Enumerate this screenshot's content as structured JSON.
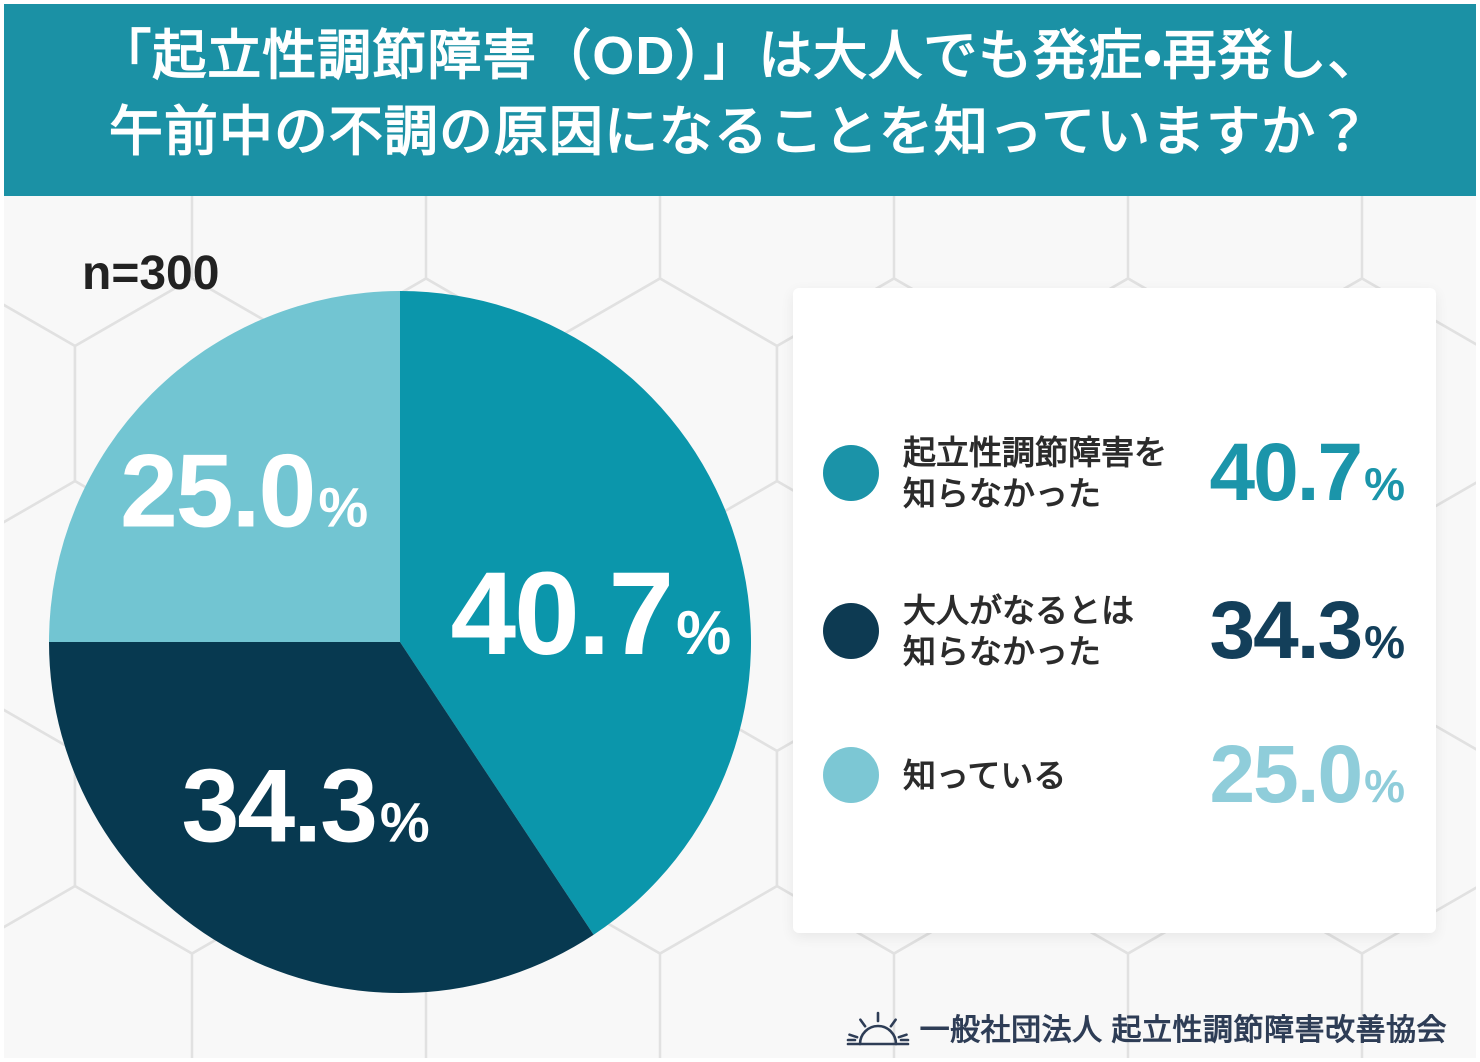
{
  "theme": {
    "header_bg": "#1b91a5",
    "footer_color": "#2e3d56",
    "background": "#ededed"
  },
  "header": {
    "title_line1": "「起立性調節障害（OD）」は大人でも発症・再発し、",
    "title_line2": "午前中の不調の原因になることを知っていますか？"
  },
  "sample_label": "n=300",
  "chart_data": {
    "type": "pie",
    "title": "「起立性調節障害（OD）」は大人でも発症・再発し、午前中の不調の原因になることを知っていますか？",
    "sample_size_label": "n=300",
    "start_angle_deg": 0,
    "direction": "clockwise",
    "legend_position": "right",
    "series": [
      {
        "label": "起立性調節障害を知らなかった",
        "value": 40.7,
        "display": "40.7",
        "unit": "%",
        "color": "#0b96ab"
      },
      {
        "label": "大人がなるとは知らなかった",
        "value": 34.3,
        "display": "34.3",
        "unit": "%",
        "color": "#073950"
      },
      {
        "label": "知っている",
        "value": 25.0,
        "display": "25.0",
        "unit": "%",
        "color": "#72c5d2"
      }
    ]
  },
  "legend": {
    "items": [
      {
        "label_line1": "起立性調節障害を",
        "label_line2": "知らなかった",
        "value": "40.7",
        "unit": "%",
        "dot_color": "#1b93a8",
        "value_color": "#1b95aa"
      },
      {
        "label_line1": "大人がなるとは",
        "label_line2": "知らなかった",
        "value": "34.3",
        "unit": "%",
        "dot_color": "#0d3a52",
        "value_color": "#133f5a"
      },
      {
        "label_line1": "知っている",
        "label_line2": "",
        "value": "25.0",
        "unit": "%",
        "dot_color": "#7cc7d4",
        "value_color": "#8fcdda"
      }
    ]
  },
  "footer": {
    "icon": "rising-sun-icon",
    "organization": "一般社団法人 起立性調節障害改善協会"
  }
}
